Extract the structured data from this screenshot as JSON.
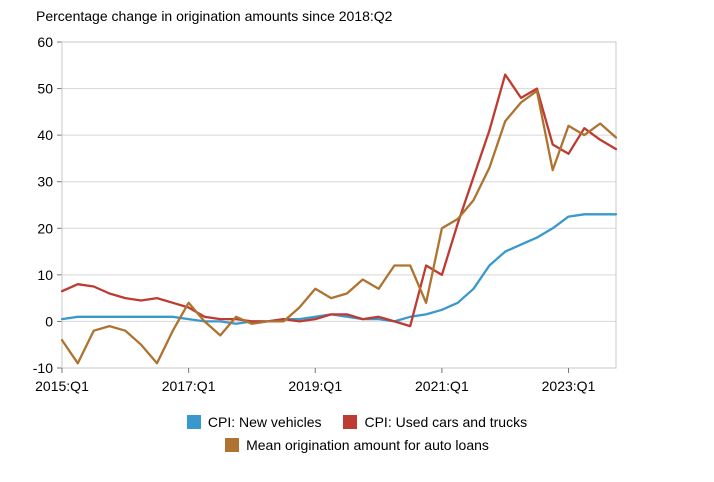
{
  "chart": {
    "title": "Percentage change in origination amounts since 2018:Q2",
    "chart_data": {
      "type": "line",
      "x": [
        "2015:Q1",
        "2015:Q2",
        "2015:Q3",
        "2015:Q4",
        "2016:Q1",
        "2016:Q2",
        "2016:Q3",
        "2016:Q4",
        "2017:Q1",
        "2017:Q2",
        "2017:Q3",
        "2017:Q4",
        "2018:Q1",
        "2018:Q2",
        "2018:Q3",
        "2018:Q4",
        "2019:Q1",
        "2019:Q2",
        "2019:Q3",
        "2019:Q4",
        "2020:Q1",
        "2020:Q2",
        "2020:Q3",
        "2020:Q4",
        "2021:Q1",
        "2021:Q2",
        "2021:Q3",
        "2021:Q4",
        "2022:Q1",
        "2022:Q2",
        "2022:Q3",
        "2022:Q4",
        "2023:Q1",
        "2023:Q2",
        "2023:Q3",
        "2023:Q4"
      ],
      "x_tick_labels": [
        "2015:Q1",
        "2017:Q1",
        "2019:Q1",
        "2021:Q1",
        "2023:Q1"
      ],
      "x_tick_indices": [
        0,
        8,
        16,
        24,
        32
      ],
      "y_ticks": [
        -10,
        0,
        10,
        20,
        30,
        40,
        50,
        60
      ],
      "ylim": [
        -10,
        60
      ],
      "grid": true,
      "legend_position": "bottom",
      "series": [
        {
          "name": "CPI: New vehicles",
          "color": "#3999CE",
          "values": [
            0.5,
            1,
            1,
            1,
            1,
            1,
            1,
            1,
            0.5,
            0,
            0,
            -0.5,
            0,
            0,
            0.5,
            0.5,
            1,
            1.5,
            1,
            0.5,
            0.5,
            0,
            1,
            1.5,
            2.5,
            4,
            7,
            12,
            15,
            16.5,
            18,
            20,
            22.5,
            23,
            23,
            23
          ]
        },
        {
          "name": "CPI: Used cars and trucks",
          "color": "#BE3B31",
          "values": [
            6.5,
            8,
            7.5,
            6,
            5,
            4.5,
            5,
            4,
            3,
            1,
            0.5,
            0.5,
            0,
            0,
            0.5,
            0,
            0.5,
            1.5,
            1.5,
            0.5,
            1,
            0,
            -1,
            12,
            10,
            21,
            31,
            41,
            53,
            48,
            50,
            38,
            36,
            41.5,
            39,
            37
          ]
        },
        {
          "name": "Mean origination amount for auto loans",
          "color": "#AE7330",
          "values": [
            -4,
            -9,
            -2,
            -1,
            -2,
            -5,
            -9,
            -2,
            4,
            0,
            -3,
            1,
            -0.5,
            0,
            0,
            3,
            7,
            5,
            6,
            9,
            7,
            12,
            12,
            4,
            20,
            22,
            26,
            33,
            43,
            47,
            49.5,
            32.5,
            42,
            40,
            42.5,
            39.5
          ]
        }
      ]
    }
  }
}
